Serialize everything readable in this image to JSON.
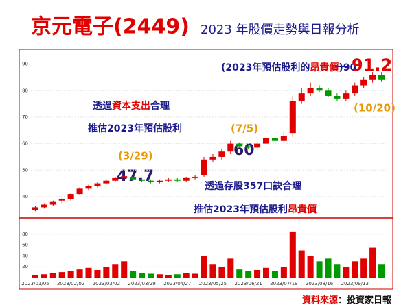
{
  "chart_data": {
    "type": "candlestick",
    "title": "京元電子(2449)",
    "subtitle": "2023 年股價走勢與日報分析",
    "categories": [
      "2023/01/05",
      null,
      null,
      null,
      "2023/02/02",
      null,
      null,
      null,
      "2023/03/02",
      null,
      null,
      null,
      "2023/03/29",
      null,
      null,
      null,
      "2023/04/27",
      null,
      null,
      null,
      "2023/05/25",
      null,
      null,
      null,
      "2023/06/21",
      null,
      null,
      null,
      "2023/07/19",
      null,
      null,
      null,
      "2023/08/16",
      null,
      null,
      null,
      "2023/09/13",
      null,
      null,
      null
    ],
    "open": [
      35,
      36,
      37,
      38.5,
      39,
      41,
      43,
      44,
      45,
      46,
      47,
      47.5,
      46.5,
      46,
      45.5,
      46,
      46.5,
      46,
      47,
      48,
      54,
      55,
      57,
      60,
      59,
      58.5,
      60,
      62,
      61,
      64,
      76,
      79,
      81,
      80,
      78,
      77,
      79,
      82,
      84,
      86
    ],
    "high": [
      36.5,
      37.5,
      38.5,
      39.5,
      41.5,
      43.5,
      44.5,
      45.5,
      46.5,
      47.5,
      48.2,
      48,
      47,
      46.5,
      46.5,
      47,
      47,
      47.5,
      48,
      55,
      56,
      58,
      61,
      60.5,
      59.5,
      61,
      63,
      62.5,
      64.5,
      78,
      81,
      83,
      82,
      81,
      79,
      80,
      83,
      85,
      87,
      87
    ],
    "low": [
      34.5,
      35.5,
      36.5,
      37.5,
      38.5,
      40.5,
      42.5,
      43.5,
      44.5,
      45.5,
      46.5,
      46,
      45.5,
      45,
      45,
      45.5,
      45.5,
      45.5,
      46.5,
      47.5,
      53,
      54,
      56,
      58.5,
      58,
      57.5,
      59,
      60.5,
      60.5,
      62.5,
      75,
      78,
      79.5,
      77.5,
      76,
      76,
      78,
      81,
      83,
      83.5
    ],
    "close": [
      36,
      37,
      38,
      39,
      41,
      43,
      44,
      45,
      46,
      47,
      47.7,
      46.5,
      46,
      45.5,
      46,
      46.5,
      46,
      47,
      47.5,
      54,
      55,
      57,
      60,
      59,
      58.5,
      60,
      62,
      61,
      63,
      76,
      79,
      81,
      80,
      78,
      77,
      79,
      82,
      84,
      86,
      84
    ],
    "volume": [
      5,
      6,
      8,
      10,
      12,
      15,
      18,
      14,
      20,
      25,
      30,
      12,
      8,
      7,
      6,
      5,
      6,
      8,
      7,
      40,
      25,
      20,
      35,
      15,
      12,
      14,
      18,
      12,
      20,
      85,
      50,
      40,
      30,
      35,
      25,
      20,
      30,
      35,
      55,
      25
    ],
    "up_color": "#e00000",
    "down_color": "#009900",
    "ylim": [
      33,
      93
    ],
    "yticks": [
      40,
      50,
      60,
      70,
      80,
      90
    ],
    "volume_lim": [
      0,
      95
    ],
    "volume_ticks": [
      20,
      40,
      60,
      80
    ],
    "expensive_note": [
      "(2023年預估股利的",
      "昂貴價",
      ")90"
    ],
    "peak_label": 91.2,
    "peak_date": "(10/20)",
    "capex_note": [
      [
        "透過",
        "資本支出",
        "合理"
      ],
      "推估2023年預估股利"
    ],
    "march_date": "(3/29)",
    "march_label": 47.7,
    "july_date": "(7/5)",
    "july_label": 60,
    "formula_note": [
      "透過存股357口訣合理",
      [
        "推估2023年預估股利",
        "昂貴價"
      ]
    ],
    "source": [
      "資料來源",
      "：投資家日報"
    ]
  }
}
